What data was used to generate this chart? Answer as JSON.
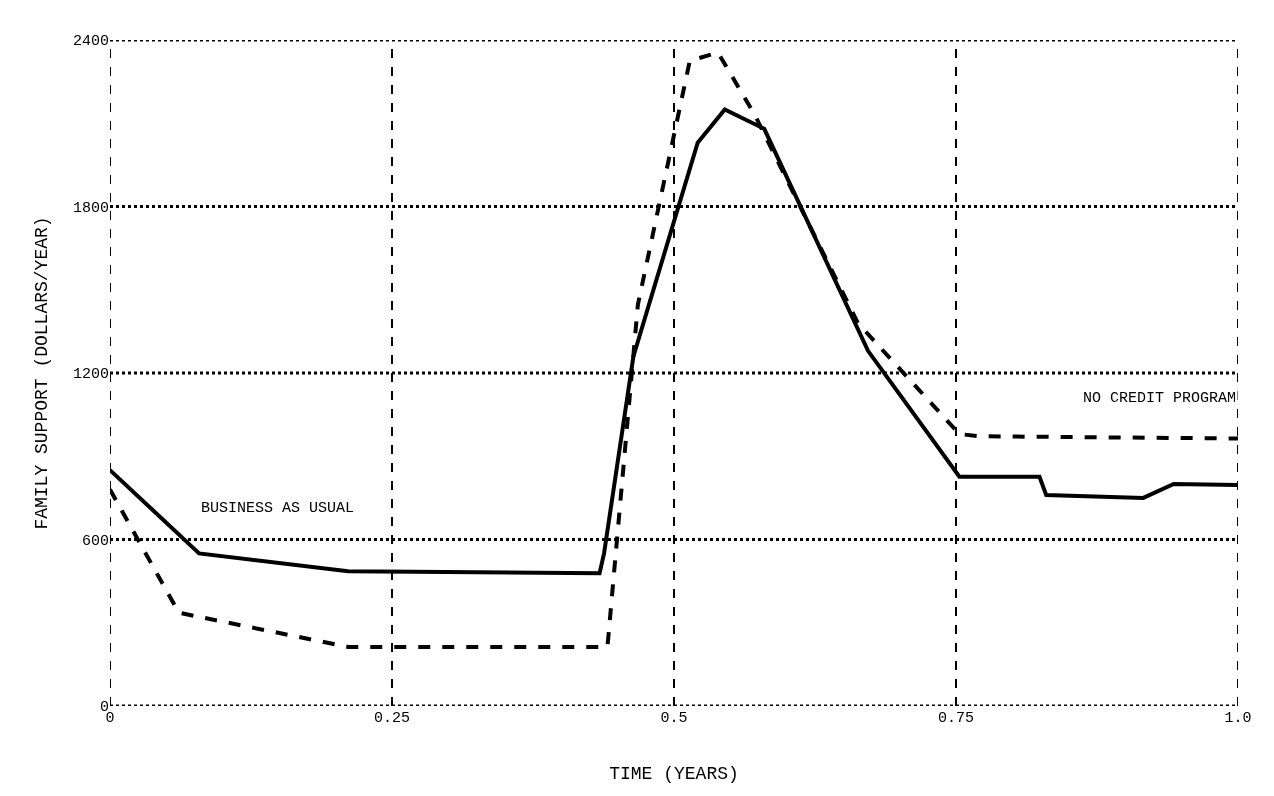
{
  "chart_data": {
    "type": "line",
    "xlabel": "TIME (YEARS)",
    "ylabel": "FAMILY SUPPORT (DOLLARS/YEAR)",
    "xlim": [
      0,
      1
    ],
    "ylim": [
      0,
      2400
    ],
    "xticks": [
      0,
      0.25,
      0.5,
      0.75,
      {
        "value": 1,
        "label": "1.0"
      }
    ],
    "yticks": [
      0,
      600,
      1200,
      1800,
      2400
    ],
    "grid": true,
    "legend": false,
    "marker": "none",
    "series": [
      {
        "name": "BUSINESS AS USUAL",
        "color": "#000000",
        "line_style": "solid",
        "x": [
          0,
          0.079,
          0.211,
          0.434,
          0.438,
          0.464,
          0.521,
          0.545,
          0.58,
          0.672,
          0.753,
          0.824,
          0.83,
          0.916,
          0.943,
          1.0
        ],
        "values": [
          850,
          550,
          486,
          478,
          550,
          1260,
          2030,
          2150,
          2080,
          1280,
          826,
          826,
          760,
          750,
          800,
          796
        ]
      },
      {
        "name": "NO CREDIT PROGRAM",
        "color": "#000000",
        "line_style": "dashed",
        "x": [
          0,
          0.061,
          0.211,
          0.441,
          0.468,
          0.514,
          0.539,
          0.572,
          0.663,
          0.753,
          0.771,
          1.0
        ],
        "values": [
          780,
          336,
          213,
          213,
          1447,
          2325,
          2355,
          2127,
          1380,
          980,
          972,
          964
        ]
      }
    ]
  }
}
